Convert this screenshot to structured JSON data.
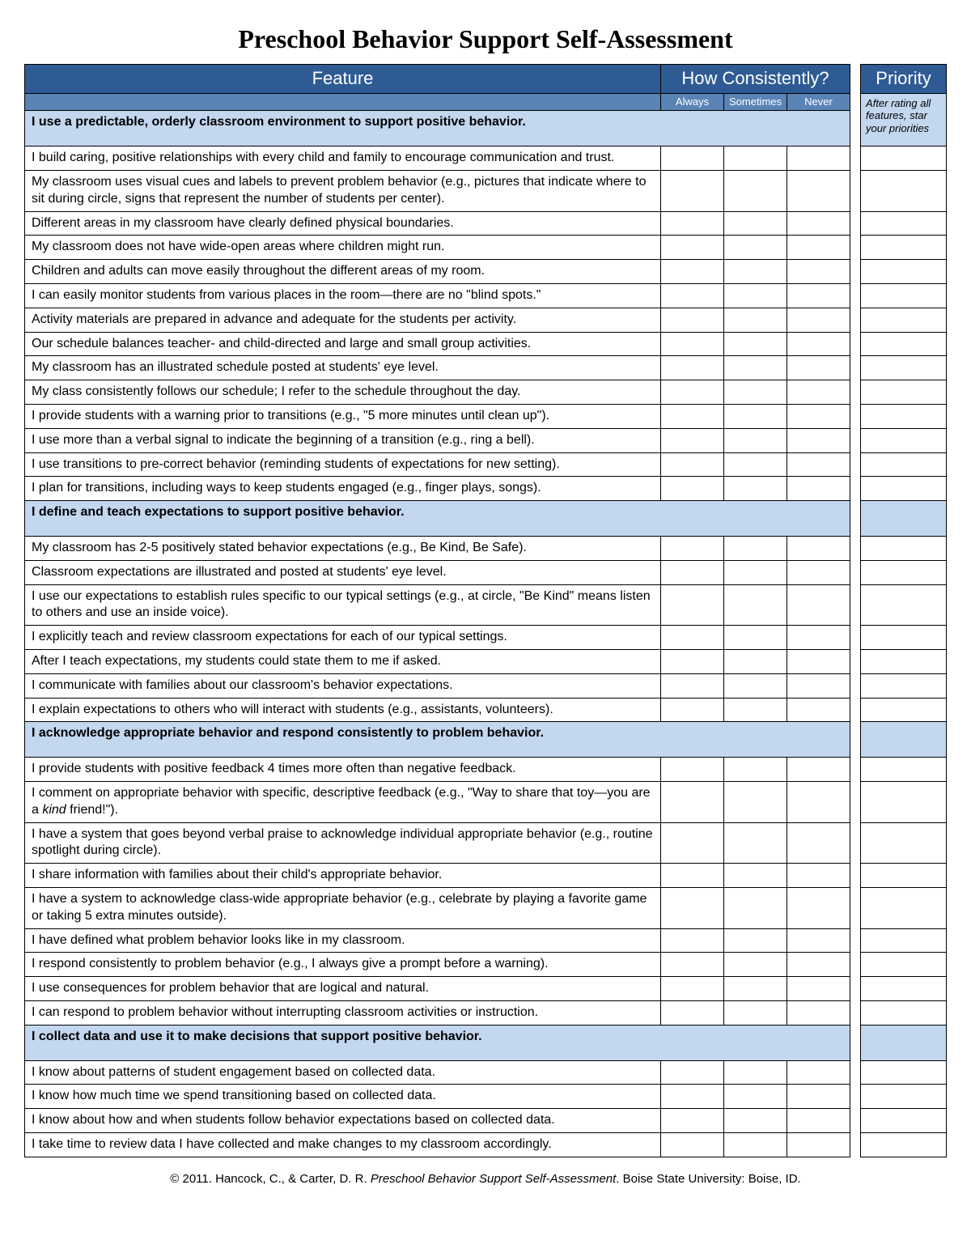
{
  "title": "Preschool Behavior Support Self-Assessment",
  "headers": {
    "feature": "Feature",
    "consistency": "How Consistently?",
    "priority": "Priority",
    "always": "Always",
    "sometimes": "Sometimes",
    "never": "Never",
    "priority_note": "After rating all features, star your priorities"
  },
  "colors": {
    "header_bg": "#2e5b94",
    "subheader_bg": "#5a83b6",
    "section_bg": "#c3d7ef",
    "border": "#000000",
    "page_bg": "#ffffff",
    "header_text": "#ffffff"
  },
  "sections": [
    {
      "heading": "I use a predictable, orderly classroom environment to support positive behavior.",
      "items": [
        "I build caring, positive relationships with every child and family to encourage communication and trust.",
        "My classroom uses visual cues and labels to prevent problem behavior (e.g., pictures that indicate where to sit during circle, signs that represent the number of students per center).",
        "Different areas in my classroom have clearly defined physical boundaries.",
        "My classroom does not have wide-open areas where children might run.",
        "Children and adults can move easily throughout the different areas of my room.",
        "I can easily monitor students from various places in the room—there are no \"blind spots.\"",
        "Activity materials are prepared in advance and adequate for the students per activity.",
        "Our schedule balances teacher- and child-directed and large and small group activities.",
        "My classroom has an illustrated schedule posted at students' eye level.",
        "My class consistently follows our schedule; I refer to the schedule throughout the day.",
        "I provide students with a warning prior to transitions (e.g., \"5 more minutes until clean up\").",
        "I use more than a verbal signal to indicate the beginning of a transition (e.g., ring a bell).",
        "I use transitions to pre-correct behavior (reminding students of expectations for new setting).",
        "I plan for transitions, including ways to keep students engaged (e.g., finger plays, songs)."
      ]
    },
    {
      "heading": "I define and teach expectations to support positive behavior.",
      "items": [
        "My classroom has 2-5 positively stated behavior expectations (e.g., Be Kind, Be Safe).",
        "Classroom expectations are illustrated and posted at students' eye level.",
        "I use our expectations to establish rules specific to our typical settings (e.g., at circle, \"Be Kind\" means listen to others and use an inside voice).",
        "I explicitly teach and review classroom expectations for each of our typical settings.",
        "After I teach expectations, my students could state them to me if asked.",
        "I communicate with families about our classroom's behavior expectations.",
        "I explain expectations to others who will interact with students (e.g., assistants, volunteers)."
      ]
    },
    {
      "heading": "I acknowledge appropriate behavior and respond consistently to problem behavior.",
      "items": [
        "I provide students with positive feedback 4 times more often than negative feedback.",
        "I comment on appropriate behavior with specific, descriptive feedback (e.g., \"Way to share that toy—you are a kind friend!\").",
        "I have a system that goes beyond verbal praise to acknowledge individual appropriate behavior (e.g., routine spotlight during circle).",
        "I share information with families about their child's appropriate behavior.",
        "I have a system to acknowledge class-wide appropriate behavior (e.g., celebrate by playing a favorite game or taking 5 extra minutes outside).",
        "I have defined what problem behavior looks like in my classroom.",
        "I respond consistently to problem behavior (e.g., I always give a prompt before a warning).",
        "I use consequences for problem behavior that are logical and natural.",
        "I can respond to problem behavior without interrupting classroom activities or instruction."
      ]
    },
    {
      "heading": "I collect data and use it to make decisions that support positive behavior.",
      "items": [
        "I know about patterns of student engagement based on collected data.",
        "I know how much time we spend transitioning based on collected data.",
        "I know about how and when students follow behavior expectations based on collected data.",
        "I take time to review data I have collected and make changes to my classroom accordingly."
      ]
    }
  ],
  "footer": {
    "prefix": "© 2011. Hancock, C., & Carter, D. R. ",
    "title_ital": "Preschool Behavior Support Self-Assessment",
    "suffix": ". Boise State University: Boise, ID."
  }
}
